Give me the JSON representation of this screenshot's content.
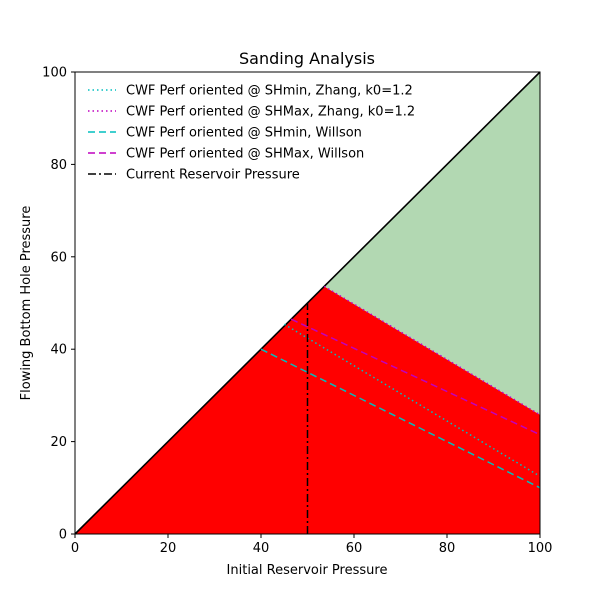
{
  "chart_data": {
    "type": "line",
    "title": "Sanding Analysis",
    "xlabel": "Initial Reservoir Pressure",
    "ylabel": "Flowing Bottom Hole Pressure",
    "xlim": [
      0,
      100
    ],
    "ylim": [
      0,
      100
    ],
    "xticks": [
      0,
      20,
      40,
      60,
      80,
      100
    ],
    "yticks": [
      0,
      20,
      40,
      60,
      80,
      100
    ],
    "grid": false,
    "legend_position": "top-left",
    "colors": {
      "safe_region": "#b2d8b2",
      "sanding_region": "#ff0000",
      "identity_line": "#000000",
      "cyan": "#00bfbf",
      "magenta": "#bf00bf"
    },
    "regions": {
      "safe_polygon": [
        [
          53.6,
          53.6
        ],
        [
          100,
          100
        ],
        [
          100,
          25.8
        ]
      ],
      "sanding_polygon": [
        [
          0,
          0
        ],
        [
          53.6,
          53.6
        ],
        [
          100,
          25.8
        ],
        [
          100,
          0
        ]
      ]
    },
    "identity_line": {
      "x": [
        0,
        100
      ],
      "y": [
        0,
        100
      ]
    },
    "series": [
      {
        "name": "CWF Perf oriented @ SHmin, Zhang, k0=1.2",
        "color": "#00bfbf",
        "style": "dotted",
        "x": [
          45,
          100
        ],
        "y": [
          45.4,
          12.5
        ]
      },
      {
        "name": "CWF Perf oriented @ SHMax, Zhang, k0=1.2",
        "color": "#bf00bf",
        "style": "dotted",
        "x": [
          53.6,
          100
        ],
        "y": [
          53.6,
          25.8
        ]
      },
      {
        "name": "CWF Perf oriented @ SHmin, Willson",
        "color": "#00bfbf",
        "style": "dashed",
        "x": [
          40,
          100
        ],
        "y": [
          40,
          10
        ]
      },
      {
        "name": "CWF Perf oriented @ SHMax, Willson",
        "color": "#bf00bf",
        "style": "dashed",
        "x": [
          46.5,
          100
        ],
        "y": [
          46.5,
          21.5
        ]
      },
      {
        "name": "Current Reservoir Pressure",
        "color": "#000000",
        "style": "dashdot",
        "x": [
          50,
          50
        ],
        "y": [
          0,
          50
        ]
      }
    ]
  }
}
